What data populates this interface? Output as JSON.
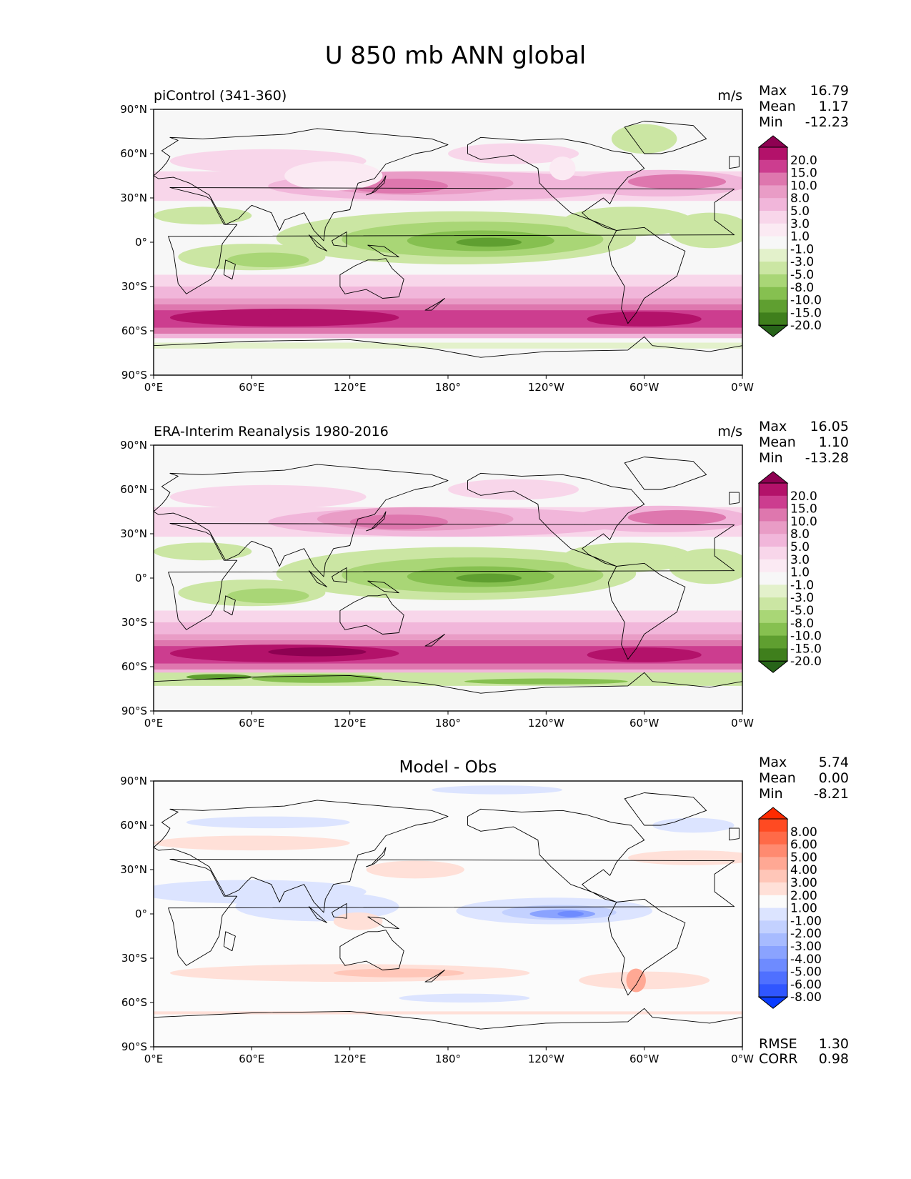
{
  "figure": {
    "title": "U 850 mb ANN global",
    "lon_tick_labels": [
      "0°E",
      "60°E",
      "120°E",
      "180°",
      "120°W",
      "60°W",
      "0°W"
    ],
    "lat_tick_labels": [
      "90°N",
      "60°N",
      "30°N",
      "0°",
      "30°S",
      "60°S",
      "90°S"
    ]
  },
  "chart_data": [
    {
      "type": "heatmap",
      "panel_title": "piControl (341-360)",
      "units": "m/s",
      "stats": {
        "max_label": "Max",
        "max": "16.79",
        "mean_label": "Mean",
        "mean": "1.17",
        "min_label": "Min",
        "min": "-12.23"
      },
      "xlim": [
        0,
        360
      ],
      "ylim": [
        -90,
        90
      ],
      "colorbar": {
        "levels": [
          "20.0",
          "15.0",
          "10.0",
          "8.0",
          "5.0",
          "3.0",
          "1.0",
          "-1.0",
          "-3.0",
          "-5.0",
          "-8.0",
          "-10.0",
          "-15.0",
          "-20.0"
        ],
        "colors": [
          "#8e0152",
          "#b3126a",
          "#cc3d8f",
          "#de77ae",
          "#e99cc6",
          "#f1b6da",
          "#f8d6ea",
          "#fbeaf3",
          "#f7f7f7",
          "#e3f1cb",
          "#cbe6a3",
          "#a9d676",
          "#86c050",
          "#5f9f30",
          "#3f7f1c",
          "#276419"
        ]
      }
    },
    {
      "type": "heatmap",
      "panel_title": "ERA-Interim Reanalysis 1980-2016",
      "units": "m/s",
      "stats": {
        "max_label": "Max",
        "max": "16.05",
        "mean_label": "Mean",
        "mean": "1.10",
        "min_label": "Min",
        "min": "-13.28"
      },
      "xlim": [
        0,
        360
      ],
      "ylim": [
        -90,
        90
      ],
      "colorbar": {
        "levels": [
          "20.0",
          "15.0",
          "10.0",
          "8.0",
          "5.0",
          "3.0",
          "1.0",
          "-1.0",
          "-3.0",
          "-5.0",
          "-8.0",
          "-10.0",
          "-15.0",
          "-20.0"
        ],
        "colors": [
          "#8e0152",
          "#b3126a",
          "#cc3d8f",
          "#de77ae",
          "#e99cc6",
          "#f1b6da",
          "#f8d6ea",
          "#fbeaf3",
          "#f7f7f7",
          "#e3f1cb",
          "#cbe6a3",
          "#a9d676",
          "#86c050",
          "#5f9f30",
          "#3f7f1c",
          "#276419"
        ]
      }
    },
    {
      "type": "heatmap",
      "panel_title": "Model - Obs",
      "units": "",
      "stats": {
        "max_label": "Max",
        "max": "5.74",
        "mean_label": "Mean",
        "mean": "0.00",
        "min_label": "Min",
        "min": "-8.21"
      },
      "extra_stats": {
        "rmse_label": "RMSE",
        "rmse": "1.30",
        "corr_label": "CORR",
        "corr": "0.98"
      },
      "xlim": [
        0,
        360
      ],
      "ylim": [
        -90,
        90
      ],
      "colorbar": {
        "levels": [
          "8.00",
          "6.00",
          "5.00",
          "4.00",
          "3.00",
          "2.00",
          "1.00",
          "-1.00",
          "-2.00",
          "-3.00",
          "-4.00",
          "-5.00",
          "-6.00",
          "-8.00"
        ],
        "colors": [
          "#ff2a00",
          "#ff4a22",
          "#ff6a48",
          "#ff8a70",
          "#ffa894",
          "#ffc6b8",
          "#ffe0d8",
          "#fbfbfb",
          "#dce4ff",
          "#c3d1ff",
          "#a7bbff",
          "#8aa3ff",
          "#6e8bff",
          "#4f70ff",
          "#3056ff",
          "#0a3cff"
        ]
      }
    }
  ]
}
